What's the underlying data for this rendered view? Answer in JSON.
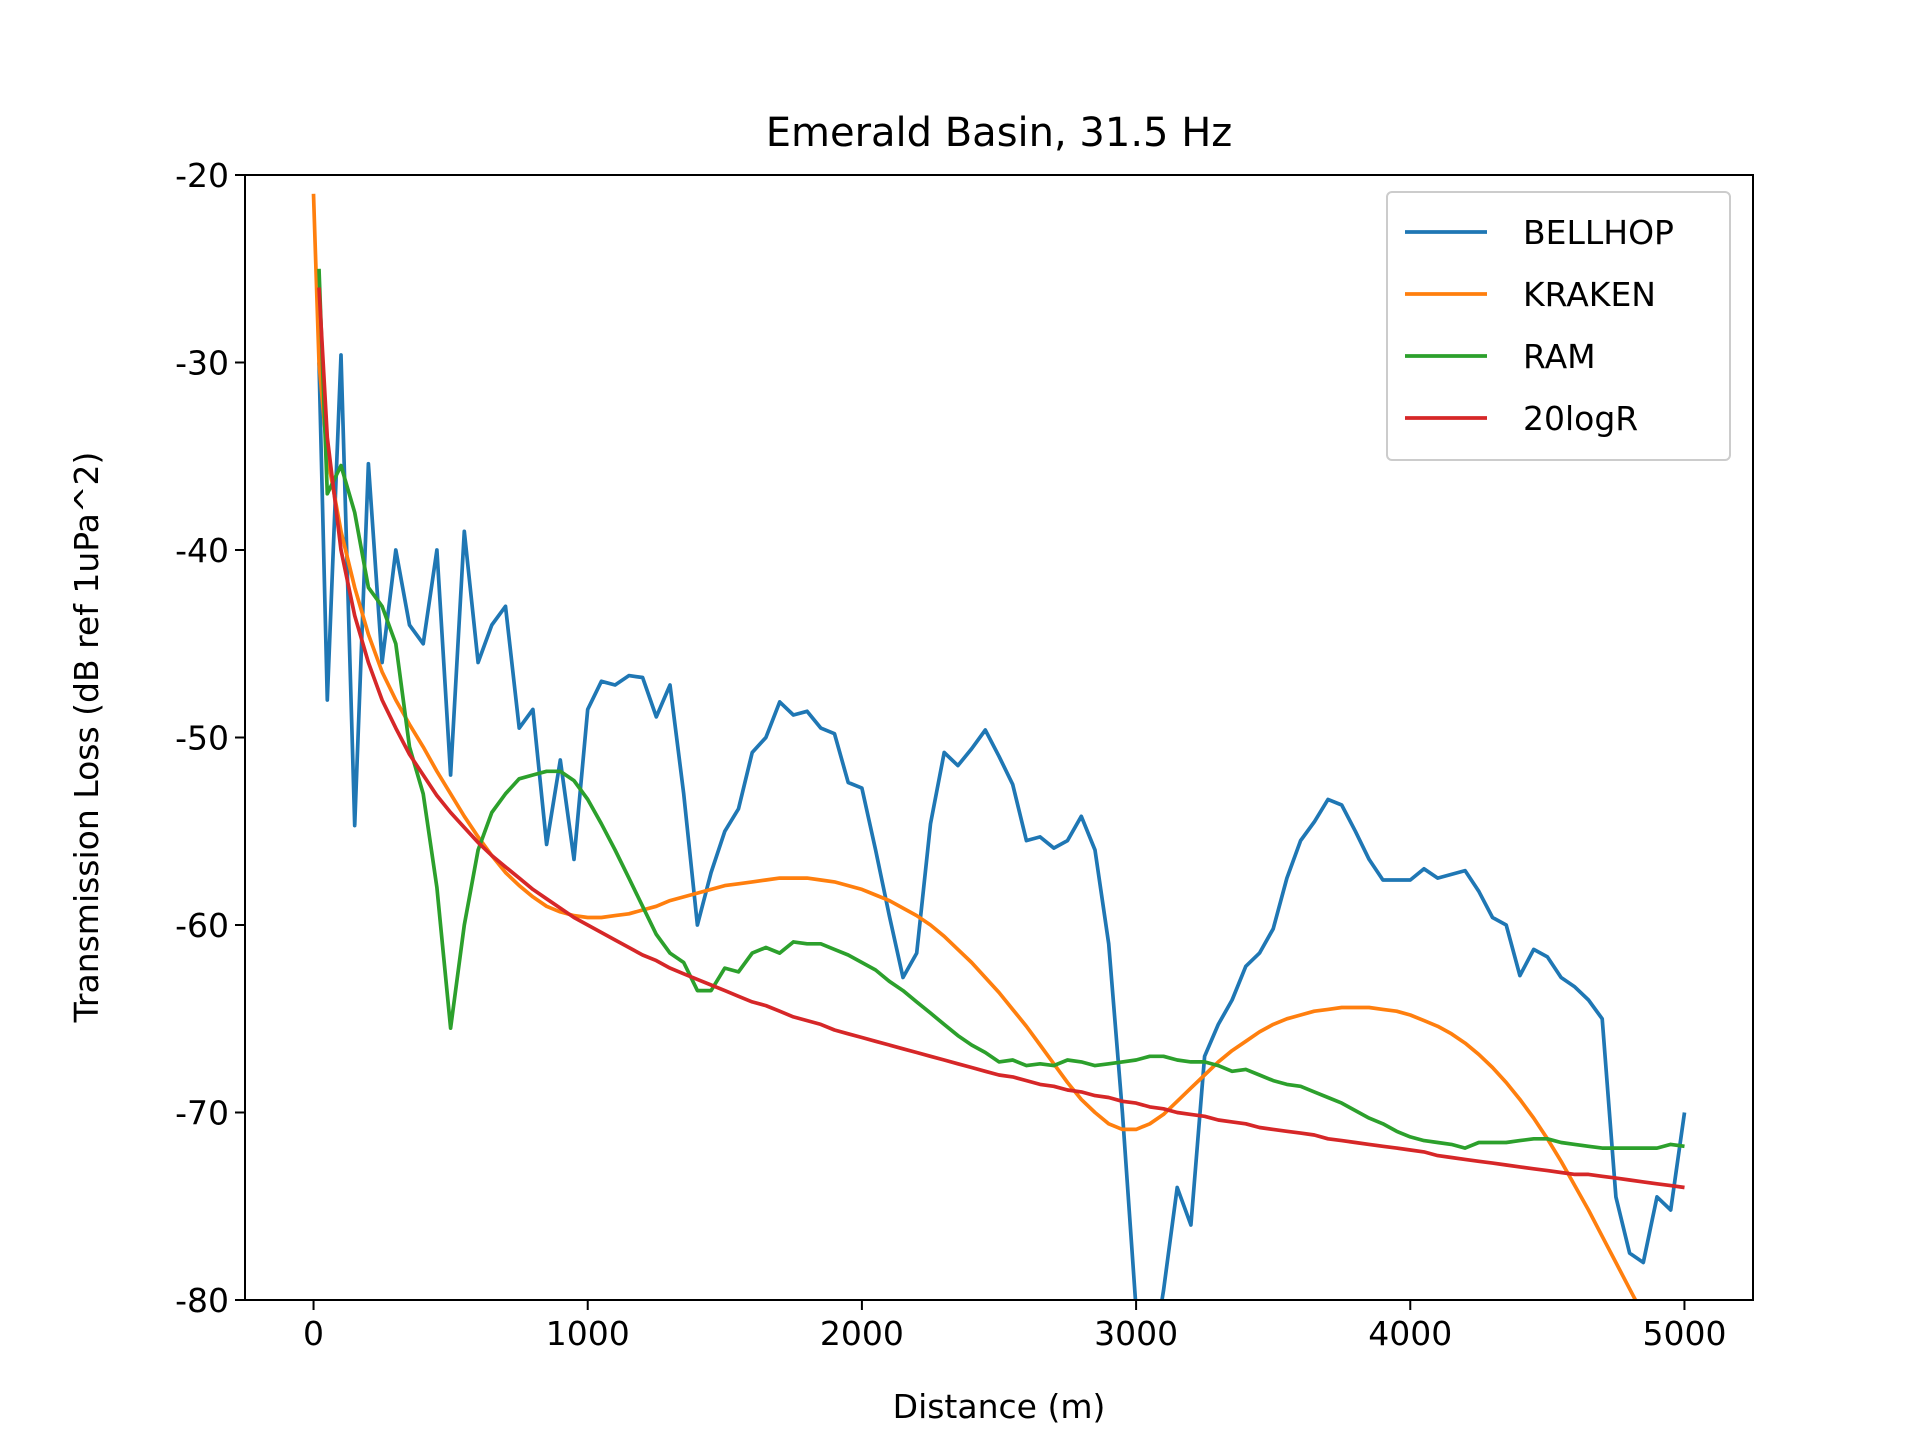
{
  "chart_data": {
    "type": "line",
    "title": "Emerald Basin, 31.5 Hz",
    "x_label": "Distance (m)",
    "y_label": "Transmission Loss (dB ref 1uPa^2)",
    "x": [
      0,
      20,
      50,
      100,
      150,
      200,
      250,
      300,
      350,
      400,
      450,
      500,
      550,
      600,
      650,
      700,
      750,
      800,
      850,
      900,
      950,
      1000,
      1050,
      1100,
      1150,
      1200,
      1250,
      1300,
      1350,
      1400,
      1450,
      1500,
      1550,
      1600,
      1650,
      1700,
      1750,
      1800,
      1850,
      1900,
      1950,
      2000,
      2050,
      2100,
      2150,
      2200,
      2250,
      2300,
      2350,
      2400,
      2450,
      2500,
      2550,
      2600,
      2650,
      2700,
      2750,
      2800,
      2850,
      2900,
      2950,
      3000,
      3050,
      3100,
      3150,
      3200,
      3250,
      3300,
      3350,
      3400,
      3450,
      3500,
      3550,
      3600,
      3650,
      3700,
      3750,
      3800,
      3850,
      3900,
      3950,
      4000,
      4050,
      4100,
      4150,
      4200,
      4250,
      4300,
      4350,
      4400,
      4450,
      4500,
      4550,
      4600,
      4650,
      4700,
      4750,
      4800,
      4850,
      4900,
      4950,
      5000
    ],
    "series": [
      {
        "name": "BELLHOP",
        "color": "#1f77b4",
        "values": [
          null,
          -30,
          -48,
          -29.6,
          -54.7,
          -35.4,
          -46,
          -40,
          -44,
          -45,
          -40,
          -52,
          -39,
          -46,
          -44,
          -43,
          -49.5,
          -48.5,
          -55.7,
          -51.2,
          -56.5,
          -48.5,
          -47,
          -47.2,
          -46.7,
          -46.8,
          -48.9,
          -47.2,
          -53,
          -60,
          -57.2,
          -55,
          -53.8,
          -50.8,
          -50,
          -48.1,
          -48.8,
          -48.6,
          -49.5,
          -49.8,
          -52.4,
          -52.7,
          -56,
          -59.5,
          -62.8,
          -61.5,
          -54.6,
          -50.8,
          -51.5,
          -50.6,
          -49.6,
          -51,
          -52.5,
          -55.5,
          -55.3,
          -55.9,
          -55.5,
          -54.2,
          -56,
          -61,
          -70,
          -80.5,
          -84,
          -79.5,
          -74,
          -76,
          -67,
          -65.3,
          -64,
          -62.2,
          -61.5,
          -60.2,
          -57.5,
          -55.5,
          -54.5,
          -53.3,
          -53.6,
          -55,
          -56.5,
          -57.6,
          -57.6,
          -57.6,
          -57,
          -57.5,
          -57.3,
          -57.1,
          -58.2,
          -59.6,
          -60,
          -62.7,
          -61.3,
          -61.7,
          -62.8,
          -63.3,
          -64,
          -65,
          -74.5,
          -77.5,
          -78,
          -74.5,
          -75.2,
          -70
        ]
      },
      {
        "name": "KRAKEN",
        "color": "#ff7f0e",
        "values": [
          -21,
          -30,
          -35,
          -39,
          -42,
          -44.5,
          -46.5,
          -48,
          -49.3,
          -50.5,
          -51.8,
          -53,
          -54.2,
          -55.3,
          -56.3,
          -57.2,
          -57.9,
          -58.5,
          -59,
          -59.3,
          -59.5,
          -59.6,
          -59.6,
          -59.5,
          -59.4,
          -59.2,
          -59,
          -58.7,
          -58.5,
          -58.3,
          -58.1,
          -57.9,
          -57.8,
          -57.7,
          -57.6,
          -57.5,
          -57.5,
          -57.5,
          -57.6,
          -57.7,
          -57.9,
          -58.1,
          -58.4,
          -58.7,
          -59.1,
          -59.5,
          -60,
          -60.6,
          -61.3,
          -62,
          -62.8,
          -63.6,
          -64.5,
          -65.4,
          -66.4,
          -67.4,
          -68.4,
          -69.3,
          -70,
          -70.6,
          -70.9,
          -70.9,
          -70.6,
          -70.1,
          -69.4,
          -68.7,
          -68,
          -67.3,
          -66.7,
          -66.2,
          -65.7,
          -65.3,
          -65,
          -64.8,
          -64.6,
          -64.5,
          -64.4,
          -64.4,
          -64.4,
          -64.5,
          -64.6,
          -64.8,
          -65.1,
          -65.4,
          -65.8,
          -66.3,
          -66.9,
          -67.6,
          -68.4,
          -69.3,
          -70.3,
          -71.4,
          -72.6,
          -73.9,
          -75.2,
          -76.6,
          -78,
          -79.4,
          -80.8,
          -82.2,
          -83.6,
          -85
        ]
      },
      {
        "name": "RAM",
        "color": "#2ca02c",
        "values": [
          null,
          -25,
          -37,
          -35.5,
          -38,
          -42,
          -43,
          -45,
          -50.5,
          -53,
          -58,
          -65.5,
          -60,
          -56,
          -54,
          -53,
          -52.2,
          -52,
          -51.8,
          -51.8,
          -52.3,
          -53.3,
          -54.6,
          -56,
          -57.5,
          -59,
          -60.5,
          -61.5,
          -62,
          -63.5,
          -63.5,
          -62.3,
          -62.5,
          -61.5,
          -61.2,
          -61.5,
          -60.9,
          -61,
          -61,
          -61.3,
          -61.6,
          -62,
          -62.4,
          -63,
          -63.5,
          -64.1,
          -64.7,
          -65.3,
          -65.9,
          -66.4,
          -66.8,
          -67.3,
          -67.2,
          -67.5,
          -67.4,
          -67.5,
          -67.2,
          -67.3,
          -67.5,
          -67.4,
          -67.3,
          -67.2,
          -67,
          -67,
          -67.2,
          -67.3,
          -67.3,
          -67.5,
          -67.8,
          -67.7,
          -68,
          -68.3,
          -68.5,
          -68.6,
          -68.9,
          -69.2,
          -69.5,
          -69.9,
          -70.3,
          -70.6,
          -71,
          -71.3,
          -71.5,
          -71.6,
          -71.7,
          -71.9,
          -71.6,
          -71.6,
          -71.6,
          -71.5,
          -71.4,
          -71.4,
          -71.6,
          -71.7,
          -71.8,
          -71.9,
          -71.9,
          -71.9,
          -71.9,
          -71.9,
          -71.7,
          -71.8
        ]
      },
      {
        "name": "20logR",
        "color": "#d62728",
        "values": [
          null,
          -26,
          -34,
          -40,
          -43.5,
          -46,
          -48,
          -49.5,
          -50.9,
          -52,
          -53.1,
          -54,
          -54.8,
          -55.6,
          -56.3,
          -56.9,
          -57.5,
          -58.1,
          -58.6,
          -59.1,
          -59.6,
          -60,
          -60.4,
          -60.8,
          -61.2,
          -61.6,
          -61.9,
          -62.3,
          -62.6,
          -62.9,
          -63.2,
          -63.5,
          -63.8,
          -64.1,
          -64.3,
          -64.6,
          -64.9,
          -65.1,
          -65.3,
          -65.6,
          -65.8,
          -66,
          -66.2,
          -66.4,
          -66.6,
          -66.8,
          -67,
          -67.2,
          -67.4,
          -67.6,
          -67.8,
          -68,
          -68.1,
          -68.3,
          -68.5,
          -68.6,
          -68.8,
          -68.9,
          -69.1,
          -69.2,
          -69.4,
          -69.5,
          -69.7,
          -69.8,
          -70,
          -70.1,
          -70.2,
          -70.4,
          -70.5,
          -70.6,
          -70.8,
          -70.9,
          -71,
          -71.1,
          -71.2,
          -71.4,
          -71.5,
          -71.6,
          -71.7,
          -71.8,
          -71.9,
          -72,
          -72.1,
          -72.3,
          -72.4,
          -72.5,
          -72.6,
          -72.7,
          -72.8,
          -72.9,
          -73,
          -73.1,
          -73.2,
          -73.3,
          -73.3,
          -73.4,
          -73.5,
          -73.6,
          -73.7,
          -73.8,
          -73.9,
          -74
        ]
      }
    ],
    "xlim": [
      -250,
      5250
    ],
    "ylim": [
      -80,
      -20
    ],
    "xticks": [
      0,
      1000,
      2000,
      3000,
      4000,
      5000
    ],
    "yticks": [
      -80,
      -70,
      -60,
      -50,
      -40,
      -30,
      -20
    ],
    "grid": false,
    "legend": "upper-right"
  }
}
